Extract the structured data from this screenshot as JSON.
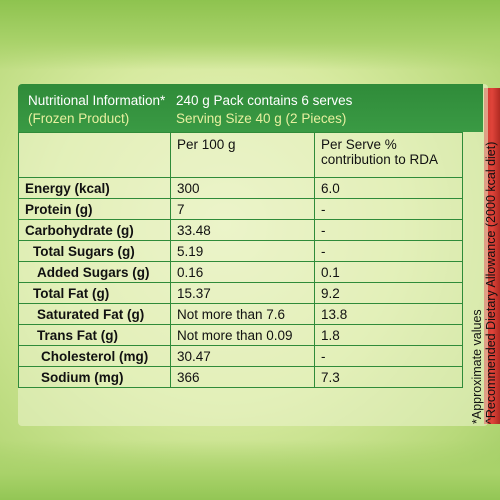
{
  "header": {
    "title_left": "Nutritional Information*",
    "subtitle_left": "(Frozen Product)",
    "pack_info": "240 g Pack contains 6 serves",
    "serving_size": "Serving Size 40 g (2 Pieces)"
  },
  "table": {
    "columns": [
      "",
      "Per 100 g",
      "Per Serve % contribution to RDA"
    ],
    "rows": [
      {
        "label": "Energy (kcal)",
        "per100": "300",
        "perServe": "6.0"
      },
      {
        "label": "Protein (g)",
        "per100": "7",
        "perServe": "-"
      },
      {
        "label": "Carbohydrate (g)",
        "per100": "33.48",
        "perServe": "-"
      },
      {
        "label": "Total Sugars (g)",
        "per100": "5.19",
        "perServe": "-"
      },
      {
        "label": "Added Sugars (g)",
        "per100": "0.16",
        "perServe": "0.1"
      },
      {
        "label": "Total Fat (g)",
        "per100": "15.37",
        "perServe": "9.2"
      },
      {
        "label": "Saturated Fat (g)",
        "per100": "Not more than 7.6",
        "perServe": "13.8"
      },
      {
        "label": "Trans Fat (g)",
        "per100": "Not more than 0.09",
        "perServe": "1.8"
      },
      {
        "label": "Cholesterol (mg)",
        "per100": "30.47",
        "perServe": "-"
      },
      {
        "label": "Sodium (mg)",
        "per100": "366",
        "perServe": "7.3"
      }
    ]
  },
  "notes": {
    "approx": "*Approximate values",
    "rda": "^Recommended Dietary Allowance (2000 kcal diet)"
  },
  "colors": {
    "header_green": "#2f8b39",
    "background_green": "#b8d97a",
    "accent_red": "#c8352a"
  }
}
